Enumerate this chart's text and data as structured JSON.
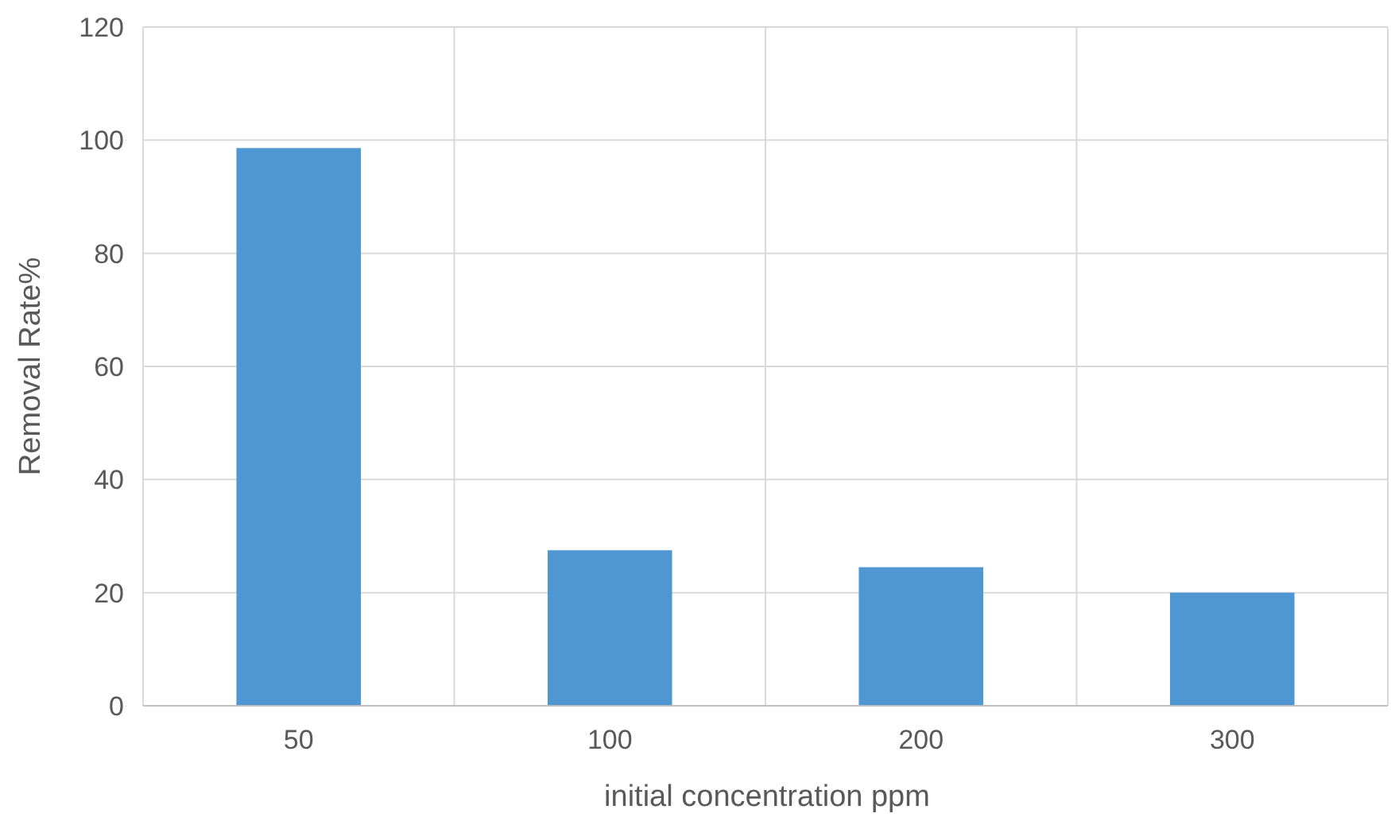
{
  "chart_data": {
    "type": "bar",
    "xlabel": "initial concentration ppm",
    "ylabel": "Removal Rate%",
    "categories": [
      "50",
      "100",
      "200",
      "300"
    ],
    "values": [
      98.6,
      27.5,
      24.5,
      20
    ],
    "color": "#4f97d3",
    "ylim": [
      0,
      120
    ],
    "yticks": [
      0,
      20,
      40,
      60,
      80,
      100,
      120
    ],
    "grid": true
  }
}
